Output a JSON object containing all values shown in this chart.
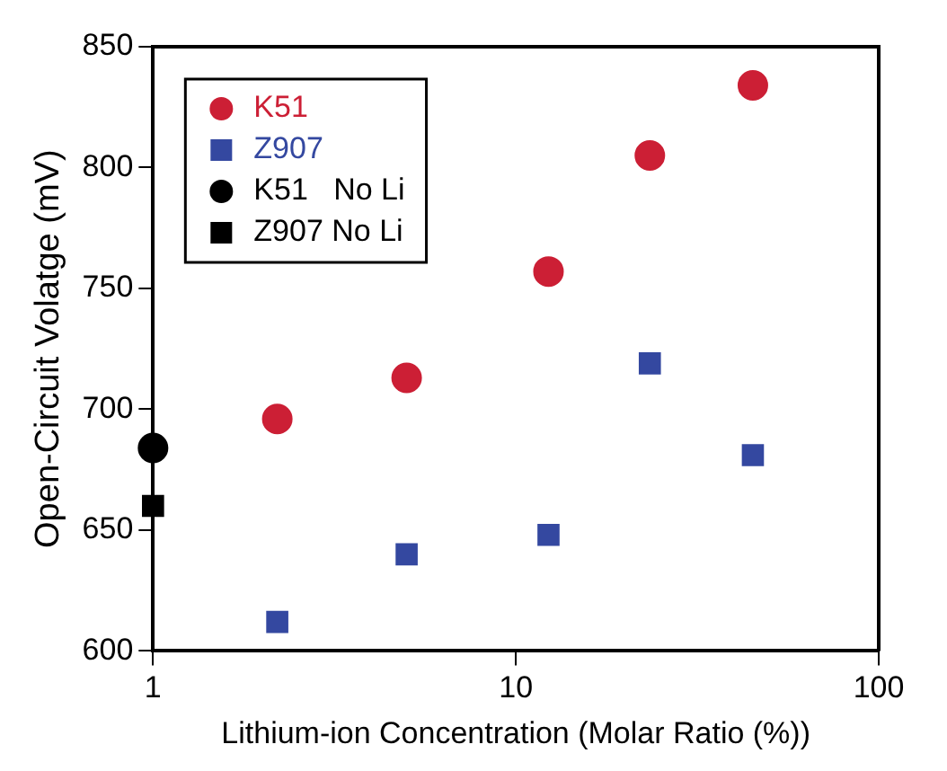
{
  "chart_data": {
    "type": "scatter",
    "xlabel": "Lithium-ion Concentration (Molar Ratio (%))",
    "ylabel": "Open-Circuit Volatge (mV)",
    "log": "x",
    "xlim": [
      1,
      100
    ],
    "xticks": [
      1,
      10,
      100
    ],
    "ylim": [
      600,
      850
    ],
    "yticks": [
      600,
      650,
      700,
      750,
      800,
      850
    ],
    "grid": false,
    "legend": "top left",
    "series": [
      {
        "name": "K51",
        "color": "#cc1f35",
        "marker": "circle",
        "x": [
          2.2,
          5,
          12.3,
          23.4,
          45
        ],
        "values": [
          696,
          713,
          757,
          805,
          834
        ]
      },
      {
        "name": "Z907",
        "color": "#3448a0",
        "marker": "square",
        "x": [
          2.2,
          5,
          12.3,
          23.4,
          45
        ],
        "values": [
          612,
          640,
          648,
          719,
          681
        ]
      },
      {
        "name": "K51   No Li",
        "color": "#000000",
        "marker": "circle",
        "x": [
          1
        ],
        "values": [
          684
        ]
      },
      {
        "name": "Z907 No Li",
        "color": "#000000",
        "marker": "square",
        "x": [
          1
        ],
        "values": [
          660
        ]
      }
    ]
  }
}
